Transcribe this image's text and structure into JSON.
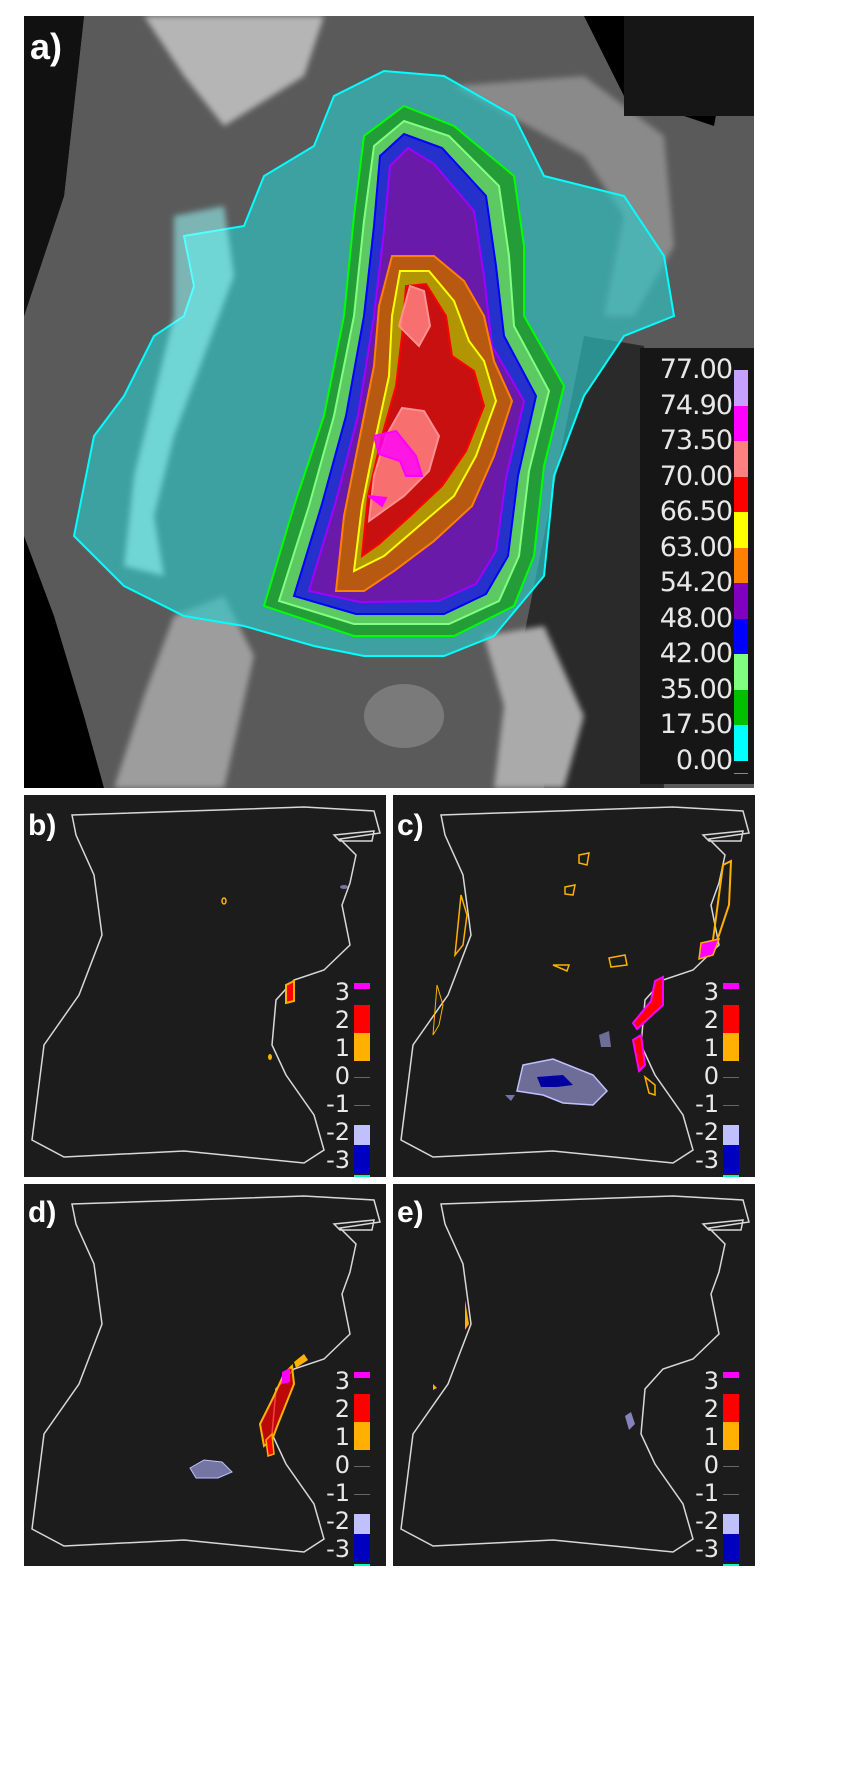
{
  "panels": {
    "a": {
      "label": "a)"
    },
    "b": {
      "label": "b)"
    },
    "c": {
      "label": "c)"
    },
    "d": {
      "label": "d)"
    },
    "e": {
      "label": "e)"
    }
  },
  "dose_legend": {
    "items": [
      {
        "value": "77.00",
        "color": "#c8a0ff"
      },
      {
        "value": "74.90",
        "color": "#ff00ff"
      },
      {
        "value": "73.50",
        "color": "#ff8080"
      },
      {
        "value": "70.00",
        "color": "#ff0000"
      },
      {
        "value": "66.50",
        "color": "#ffff00"
      },
      {
        "value": "63.00",
        "color": "#ff8000"
      },
      {
        "value": "54.20",
        "color": "#8000c0"
      },
      {
        "value": "48.00",
        "color": "#0000ff"
      },
      {
        "value": "42.00",
        "color": "#80ff80"
      },
      {
        "value": "35.00",
        "color": "#00c000"
      },
      {
        "value": "17.50",
        "color": "#00ffff"
      },
      {
        "value": "0.00",
        "color": ""
      }
    ]
  },
  "diff_legend": {
    "items": [
      {
        "value": "3",
        "color": "#ff00ff"
      },
      {
        "value": "2",
        "color": "#ff0000"
      },
      {
        "value": "1",
        "color": "#ffb000"
      },
      {
        "value": "0",
        "color": ""
      },
      {
        "value": "-1",
        "color": ""
      },
      {
        "value": "-2",
        "color": "#c0c0ff"
      },
      {
        "value": "-3",
        "color": "#0000c0"
      }
    ],
    "bottom_color": "#00ffc0"
  }
}
